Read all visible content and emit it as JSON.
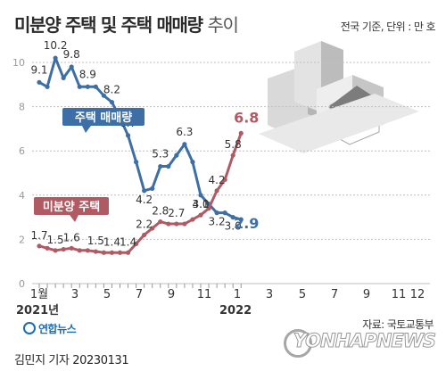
{
  "title_main": "미분양 주택 및 주택 매매량",
  "title_suffix": "추이",
  "unit_note": "전국 기준, 단위 : 만 호",
  "source": "자료: 국토교통부",
  "byline": "김민지 기자  20230131",
  "agency": "연합뉴스",
  "watermark": "YONHAPNEWS",
  "colors": {
    "sales": "#3d6fa6",
    "unsold": "#b05a64",
    "grid": "#bfbfbf",
    "axis": "#999999"
  },
  "chart_data": {
    "type": "line",
    "ylim": [
      0,
      10
    ],
    "yticks": [
      0,
      2,
      4,
      6,
      8,
      10
    ],
    "x_tick_labels": [
      "1월",
      "3",
      "5",
      "7",
      "9",
      "11",
      "1",
      "3",
      "5",
      "7",
      "9",
      "11",
      "12"
    ],
    "year_labels": [
      "2021년",
      "2022"
    ],
    "series": [
      {
        "name": "주택 매매량",
        "values": [
          9.1,
          8.9,
          10.2,
          9.3,
          9.8,
          8.9,
          8.9,
          8.9,
          8.5,
          8.2,
          7.5,
          6.7,
          5.5,
          4.2,
          4.3,
          5.3,
          5.3,
          5.8,
          6.3,
          5.5,
          4.0,
          3.6,
          3.2,
          3.2,
          3.0,
          2.9
        ],
        "labels": [
          {
            "i": 0,
            "text": "9.1"
          },
          {
            "i": 2,
            "text": "10.2"
          },
          {
            "i": 4,
            "text": "9.8"
          },
          {
            "i": 6,
            "text": "8.9"
          },
          {
            "i": 9,
            "text": "8.2"
          },
          {
            "i": 11,
            "text": "6.7"
          },
          {
            "i": 13,
            "text": "4.2"
          },
          {
            "i": 15,
            "text": "5.3"
          },
          {
            "i": 18,
            "text": "6.3"
          },
          {
            "i": 20,
            "text": "4.0"
          },
          {
            "i": 22,
            "text": "3.2"
          },
          {
            "i": 24,
            "text": "3.0"
          },
          {
            "i": 25,
            "text": "2.9"
          }
        ]
      },
      {
        "name": "미분양 주택",
        "values": [
          1.7,
          1.6,
          1.5,
          1.55,
          1.6,
          1.5,
          1.5,
          1.45,
          1.4,
          1.4,
          1.4,
          1.4,
          1.8,
          2.2,
          2.5,
          2.8,
          2.7,
          2.7,
          2.7,
          2.9,
          3.1,
          3.4,
          4.2,
          4.7,
          5.8,
          6.8
        ],
        "labels": [
          {
            "i": 0,
            "text": "1.7"
          },
          {
            "i": 2,
            "text": "1.5"
          },
          {
            "i": 4,
            "text": "1.6"
          },
          {
            "i": 7,
            "text": "1.5"
          },
          {
            "i": 9,
            "text": "1.4"
          },
          {
            "i": 11,
            "text": "1.4"
          },
          {
            "i": 13,
            "text": "2.2"
          },
          {
            "i": 15,
            "text": "2.8"
          },
          {
            "i": 17,
            "text": "2.7"
          },
          {
            "i": 20,
            "text": "3.1"
          },
          {
            "i": 22,
            "text": "4.2"
          },
          {
            "i": 24,
            "text": "5.8"
          },
          {
            "i": 25,
            "text": "6.8"
          }
        ]
      }
    ]
  }
}
